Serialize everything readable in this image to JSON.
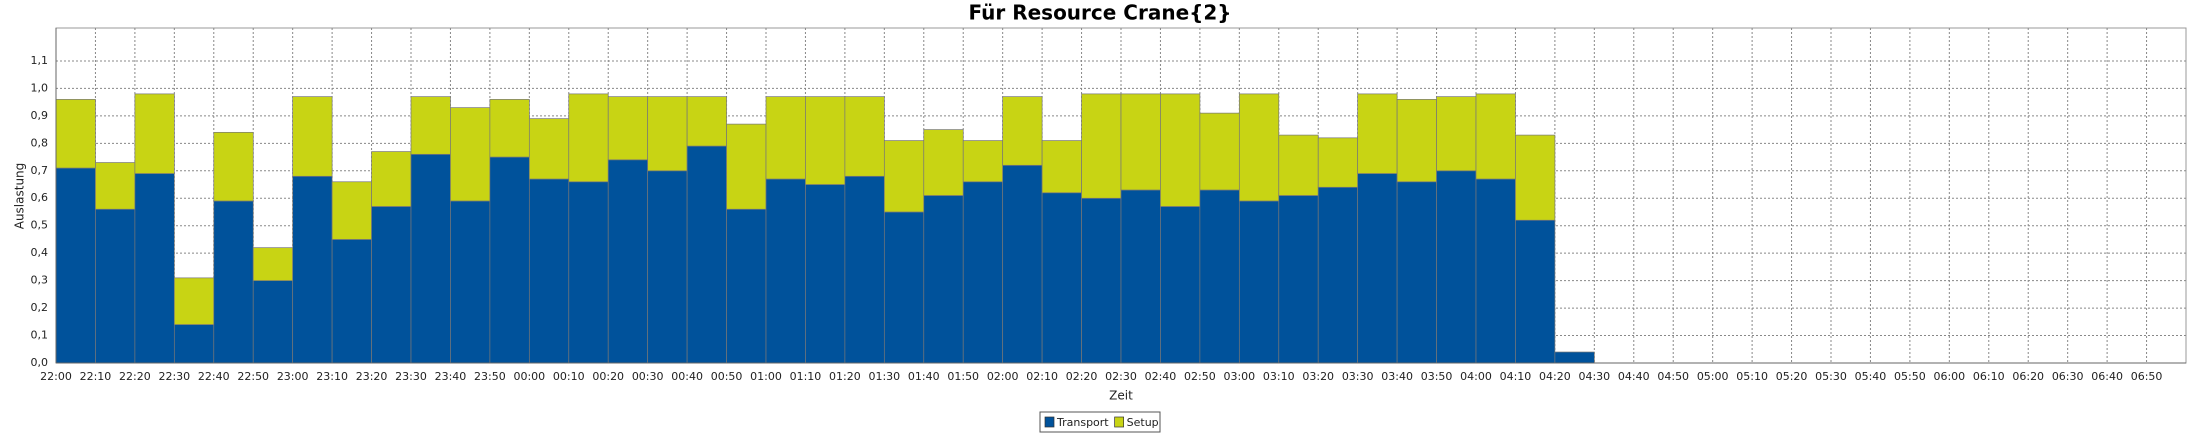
{
  "chart_data": {
    "type": "stacked_bar",
    "title": "Für Resource Crane{2}",
    "x_label": "Zeit",
    "y_label": "Auslastung",
    "categories": [
      "22:00",
      "22:10",
      "22:20",
      "22:30",
      "22:40",
      "22:50",
      "23:00",
      "23:10",
      "23:20",
      "23:30",
      "23:40",
      "23:50",
      "00:00",
      "00:10",
      "00:20",
      "00:30",
      "00:40",
      "00:50",
      "01:00",
      "01:10",
      "01:20",
      "01:30",
      "01:40",
      "01:50",
      "02:00",
      "02:10",
      "02:20",
      "02:30",
      "02:40",
      "02:50",
      "03:00",
      "03:10",
      "03:20",
      "03:30",
      "03:40",
      "03:50",
      "04:00",
      "04:10",
      "04:20",
      "04:30",
      "04:40",
      "04:50",
      "05:00",
      "05:10",
      "05:20",
      "05:30",
      "05:40",
      "05:50",
      "06:00",
      "06:10",
      "06:20",
      "06:30",
      "06:40",
      "06:50"
    ],
    "series": [
      {
        "name": "Transport",
        "color": "#00529b",
        "values": [
          0.71,
          0.56,
          0.69,
          0.14,
          0.59,
          0.3,
          0.68,
          0.45,
          0.57,
          0.76,
          0.59,
          0.75,
          0.67,
          0.66,
          0.74,
          0.7,
          0.79,
          0.56,
          0.67,
          0.65,
          0.68,
          0.55,
          0.61,
          0.66,
          0.72,
          0.62,
          0.6,
          0.63,
          0.57,
          0.63,
          0.59,
          0.61,
          0.64,
          0.69,
          0.66,
          0.7,
          0.67,
          0.52,
          0.04,
          null,
          null,
          null,
          null,
          null,
          null,
          null,
          null,
          null,
          null,
          null,
          null,
          null,
          null,
          null
        ]
      },
      {
        "name": "Setup",
        "color": "#c8d414",
        "values": [
          0.25,
          0.17,
          0.29,
          0.17,
          0.25,
          0.12,
          0.29,
          0.21,
          0.2,
          0.21,
          0.34,
          0.21,
          0.22,
          0.32,
          0.23,
          0.27,
          0.18,
          0.31,
          0.3,
          0.32,
          0.29,
          0.26,
          0.24,
          0.15,
          0.25,
          0.19,
          0.38,
          0.35,
          0.41,
          0.28,
          0.39,
          0.22,
          0.18,
          0.29,
          0.3,
          0.27,
          0.31,
          0.31,
          0,
          null,
          null,
          null,
          null,
          null,
          null,
          null,
          null,
          null,
          null,
          null,
          null,
          null,
          null,
          null
        ]
      }
    ],
    "ylim": [
      0,
      1.22
    ],
    "yticks": [
      {
        "value": 0,
        "label": "0,0"
      },
      {
        "value": 0.1,
        "label": "0,1"
      },
      {
        "value": 0.2,
        "label": "0,2"
      },
      {
        "value": 0.3,
        "label": "0,3"
      },
      {
        "value": 0.4,
        "label": "0,4"
      },
      {
        "value": 0.5,
        "label": "0,5"
      },
      {
        "value": 0.6,
        "label": "0,6"
      },
      {
        "value": 0.7,
        "label": "0,7"
      },
      {
        "value": 0.8,
        "label": "0,8"
      },
      {
        "value": 0.9,
        "label": "0,9"
      },
      {
        "value": 1.0,
        "label": "1,0"
      },
      {
        "value": 1.1,
        "label": "1,1"
      }
    ],
    "grid": true
  }
}
